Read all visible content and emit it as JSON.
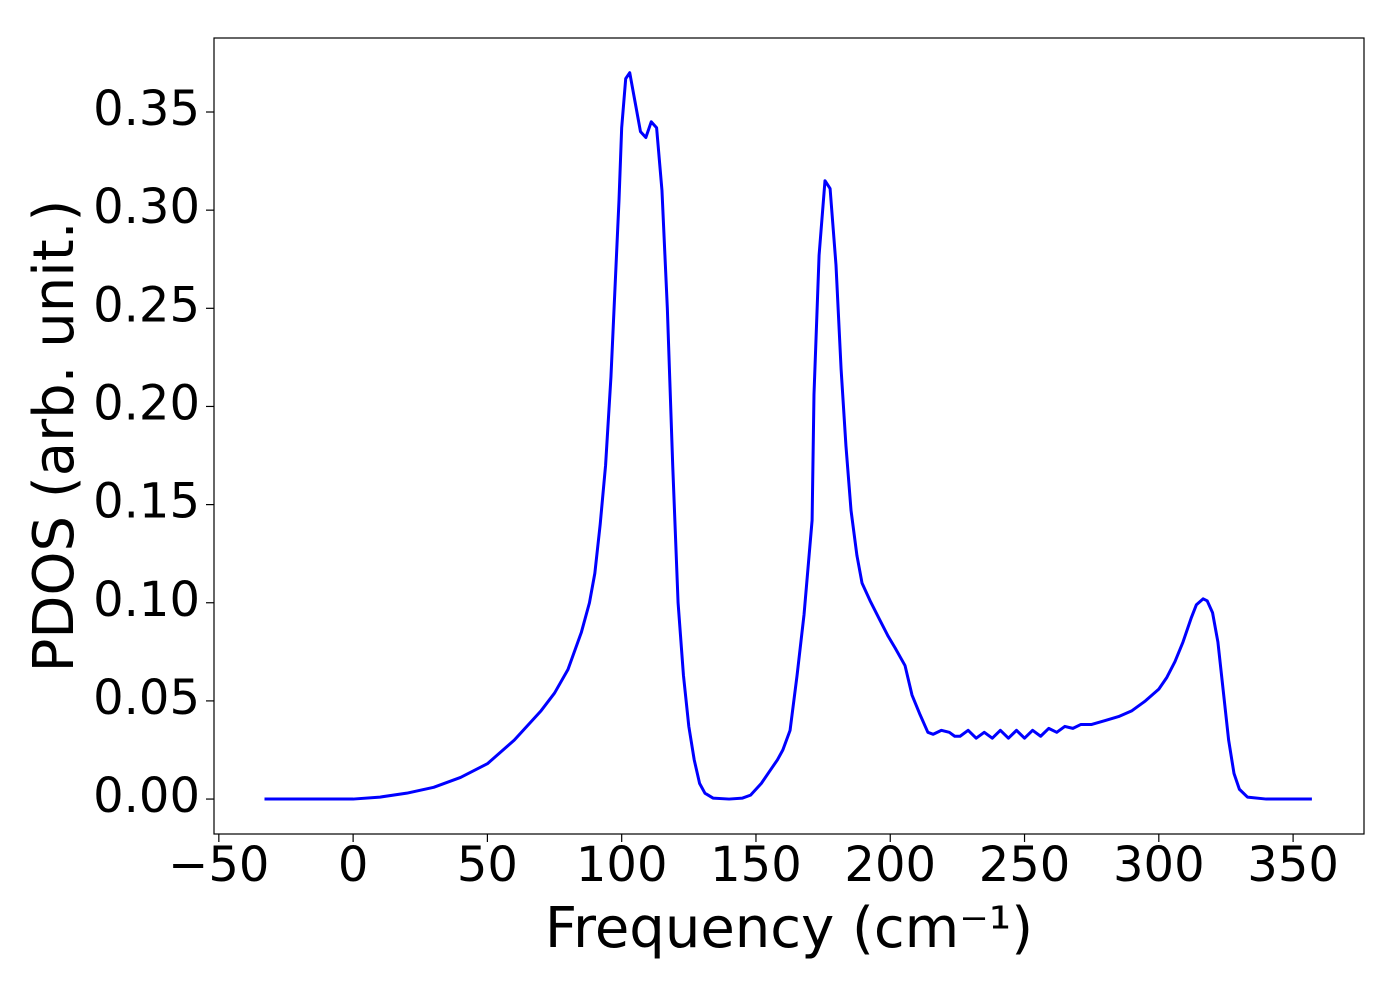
{
  "chart_data": {
    "type": "line",
    "xlabel": "Frequency (cm⁻¹)",
    "ylabel": "PDOS (arb. unit.)",
    "x": [
      -33,
      0,
      10,
      20,
      30,
      40,
      50,
      60,
      70,
      75,
      80,
      85,
      88,
      90,
      92,
      94,
      96,
      97.5,
      99,
      100,
      101.5,
      103,
      105,
      107,
      109,
      111,
      113,
      115,
      117,
      119,
      121,
      123,
      125,
      127,
      129,
      131,
      134,
      140,
      145,
      148,
      152,
      155,
      158,
      160,
      162.7,
      165.3,
      167.9,
      170.9,
      171.6,
      173.5,
      175.7,
      177.6,
      179.8,
      181.7,
      183.5,
      185.4,
      187.6,
      189.5,
      192.5,
      196.2,
      199.2,
      201.8,
      205.5,
      208.1,
      211.1,
      214,
      216,
      219,
      222,
      224,
      226,
      229,
      232,
      235,
      238,
      241,
      244,
      247,
      250,
      253,
      256,
      259,
      262,
      265,
      268,
      271,
      275,
      280,
      285,
      290,
      295,
      300,
      303,
      306,
      309,
      312,
      314,
      316.5,
      318,
      320,
      322,
      324,
      326,
      328,
      330,
      333,
      340,
      357
    ],
    "series": [
      {
        "name": "PDOS",
        "color": "#0000ff",
        "values": [
          0,
          0,
          0.001,
          0.003,
          0.006,
          0.011,
          0.018,
          0.03,
          0.045,
          0.054,
          0.066,
          0.085,
          0.1,
          0.115,
          0.14,
          0.17,
          0.215,
          0.26,
          0.305,
          0.342,
          0.367,
          0.37,
          0.355,
          0.34,
          0.337,
          0.345,
          0.342,
          0.31,
          0.25,
          0.17,
          0.1,
          0.063,
          0.037,
          0.02,
          0.008,
          0.003,
          0.0005,
          0,
          0.0005,
          0.002,
          0.008,
          0.014,
          0.02,
          0.025,
          0.035,
          0.063,
          0.094,
          0.142,
          0.206,
          0.277,
          0.315,
          0.311,
          0.272,
          0.219,
          0.18,
          0.147,
          0.124,
          0.11,
          0.101,
          0.091,
          0.083,
          0.077,
          0.068,
          0.053,
          0.043,
          0.034,
          0.033,
          0.035,
          0.034,
          0.032,
          0.032,
          0.035,
          0.031,
          0.034,
          0.031,
          0.035,
          0.031,
          0.035,
          0.031,
          0.035,
          0.032,
          0.036,
          0.034,
          0.037,
          0.036,
          0.038,
          0.038,
          0.04,
          0.042,
          0.045,
          0.05,
          0.056,
          0.062,
          0.07,
          0.08,
          0.092,
          0.099,
          0.102,
          0.101,
          0.095,
          0.08,
          0.055,
          0.03,
          0.013,
          0.005,
          0.001,
          0,
          0
        ]
      }
    ],
    "xlim": [
      -51.8,
      376.4
    ],
    "ylim": [
      -0.0178,
      0.3877
    ],
    "xticks": [
      {
        "value": -50,
        "label": "−50"
      },
      0,
      50,
      100,
      150,
      200,
      250,
      300,
      350
    ],
    "yticks": [
      {
        "value": 0,
        "label": "0.00"
      },
      {
        "value": 0.05,
        "label": "0.05"
      },
      {
        "value": 0.1,
        "label": "0.10"
      },
      {
        "value": 0.15,
        "label": "0.15"
      },
      {
        "value": 0.2,
        "label": "0.20"
      },
      {
        "value": 0.25,
        "label": "0.25"
      },
      {
        "value": 0.3,
        "label": "0.30"
      },
      {
        "value": 0.35,
        "label": "0.35"
      }
    ],
    "grid": false
  }
}
